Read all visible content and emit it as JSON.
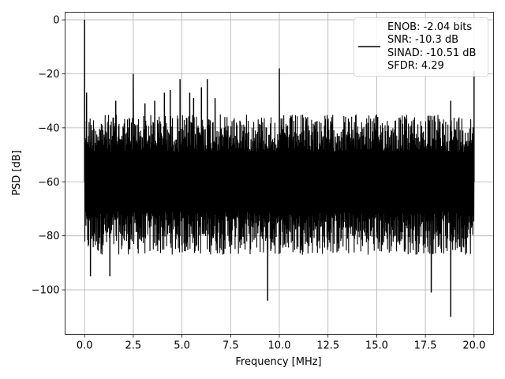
{
  "chart_data": {
    "type": "line",
    "xlabel": "Frequency [MHz]",
    "ylabel": "PSD [dB]",
    "xlim": [
      -1.0,
      21.0
    ],
    "ylim": [
      -116.5,
      2.8
    ],
    "xticks": [
      0.0,
      2.5,
      5.0,
      7.5,
      10.0,
      12.5,
      15.0,
      17.5,
      20.0
    ],
    "xtick_labels": [
      "0.0",
      "2.5",
      "5.0",
      "7.5",
      "10.0",
      "12.5",
      "15.0",
      "17.5",
      "20.0"
    ],
    "yticks": [
      0,
      -20,
      -40,
      -60,
      -80,
      -100
    ],
    "ytick_labels": [
      "0",
      "−20",
      "−40",
      "−60",
      "−80",
      "−100"
    ],
    "grid": true,
    "legend_location": "top-right",
    "legend_lines": [
      "ENOB: -2.04 bits",
      "SNR: -10.3 dB",
      "SINAD: -10.51 dB",
      "SFDR: 4.29"
    ],
    "series": [
      {
        "color": "#000000",
        "noise_floor_db": [
          -35,
          -87
        ],
        "peaks": [
          {
            "x": 0.0,
            "y": 0
          },
          {
            "x": 0.1,
            "y": -27
          },
          {
            "x": 1.6,
            "y": -30
          },
          {
            "x": 2.5,
            "y": -20
          },
          {
            "x": 3.1,
            "y": -31
          },
          {
            "x": 3.6,
            "y": -30
          },
          {
            "x": 4.1,
            "y": -27
          },
          {
            "x": 4.4,
            "y": -26
          },
          {
            "x": 4.9,
            "y": -22
          },
          {
            "x": 5.4,
            "y": -27
          },
          {
            "x": 5.6,
            "y": -29
          },
          {
            "x": 6.0,
            "y": -25
          },
          {
            "x": 6.3,
            "y": -22
          },
          {
            "x": 6.7,
            "y": -29
          },
          {
            "x": 10.0,
            "y": -18
          },
          {
            "x": 18.8,
            "y": -30
          },
          {
            "x": 20.0,
            "y": -19
          }
        ],
        "dips": [
          {
            "x": 9.4,
            "y": -104
          },
          {
            "x": 17.8,
            "y": -101
          },
          {
            "x": 18.8,
            "y": -110
          },
          {
            "x": 0.3,
            "y": -95
          },
          {
            "x": 1.3,
            "y": -95
          }
        ]
      }
    ]
  }
}
